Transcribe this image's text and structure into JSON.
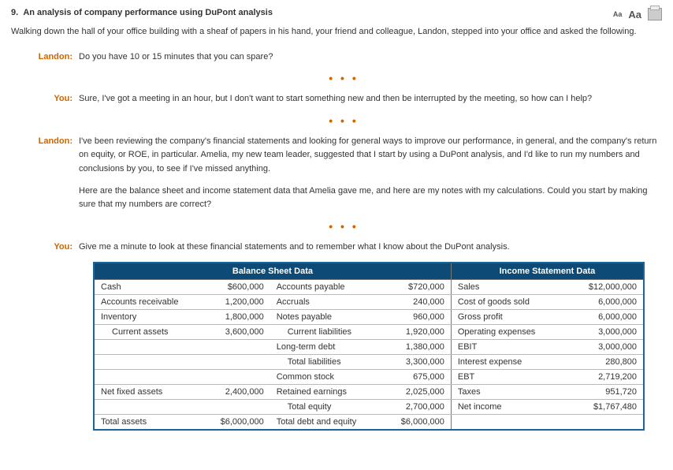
{
  "question": {
    "number": "9.",
    "title": "An analysis of company performance using DuPont analysis"
  },
  "tools": {
    "aa_small": "Aa",
    "aa_big": "Aa"
  },
  "intro": "Walking down the hall of your office building with a sheaf of papers in his hand, your friend and colleague, Landon, stepped into your office and asked the following.",
  "speakers": {
    "landon": "Landon:",
    "you": "You:"
  },
  "dlg": {
    "l1": "Do you have 10 or 15 minutes that you can spare?",
    "y1": "Sure, I've got a meeting in an hour, but I don't want to start something new and then be interrupted by the meeting, so how can I help?",
    "l2a": "I've been reviewing the company's financial statements and looking for general ways to improve our performance, in general, and the company's return on equity, or ROE, in particular. Amelia, my new team leader, suggested that I start by using a DuPont analysis, and I'd like to run my numbers and conclusions by you, to see if I've missed anything.",
    "l2b": "Here are the balance sheet and income statement data that Amelia gave me, and here are my notes with my calculations. Could you start by making sure that my numbers are correct?",
    "y2": "Give me a minute to look at these financial statements and to remember what I know about the DuPont analysis."
  },
  "dots": "• • •",
  "table": {
    "headers": {
      "bs": "Balance Sheet Data",
      "is": "Income Statement Data"
    },
    "rows": [
      {
        "a_lbl": "Cash",
        "a_val": "$600,000",
        "l_lbl": "Accounts payable",
        "l_val": "$720,000",
        "i_lbl": "Sales",
        "i_val": "$12,000,000",
        "indent_a": false,
        "indent_l": false
      },
      {
        "a_lbl": "Accounts receivable",
        "a_val": "1,200,000",
        "l_lbl": "Accruals",
        "l_val": "240,000",
        "i_lbl": "Cost of goods sold",
        "i_val": "6,000,000",
        "indent_a": false,
        "indent_l": false
      },
      {
        "a_lbl": "Inventory",
        "a_val": "1,800,000",
        "l_lbl": "Notes payable",
        "l_val": "960,000",
        "i_lbl": "Gross profit",
        "i_val": "6,000,000",
        "indent_a": false,
        "indent_l": false
      },
      {
        "a_lbl": "Current assets",
        "a_val": "3,600,000",
        "l_lbl": "Current liabilities",
        "l_val": "1,920,000",
        "i_lbl": "Operating expenses",
        "i_val": "3,000,000",
        "indent_a": true,
        "indent_l": true
      },
      {
        "a_lbl": "",
        "a_val": "",
        "l_lbl": "Long-term debt",
        "l_val": "1,380,000",
        "i_lbl": "EBIT",
        "i_val": "3,000,000",
        "indent_a": false,
        "indent_l": false
      },
      {
        "a_lbl": "",
        "a_val": "",
        "l_lbl": "Total liabilities",
        "l_val": "3,300,000",
        "i_lbl": "Interest expense",
        "i_val": "280,800",
        "indent_a": false,
        "indent_l": true
      },
      {
        "a_lbl": "",
        "a_val": "",
        "l_lbl": "Common stock",
        "l_val": "675,000",
        "i_lbl": "EBT",
        "i_val": "2,719,200",
        "indent_a": false,
        "indent_l": false
      },
      {
        "a_lbl": "Net fixed assets",
        "a_val": "2,400,000",
        "l_lbl": "Retained earnings",
        "l_val": "2,025,000",
        "i_lbl": "Taxes",
        "i_val": "951,720",
        "indent_a": false,
        "indent_l": false
      },
      {
        "a_lbl": "",
        "a_val": "",
        "l_lbl": "Total equity",
        "l_val": "2,700,000",
        "i_lbl": "Net income",
        "i_val": "$1,767,480",
        "indent_a": false,
        "indent_l": true
      },
      {
        "a_lbl": "Total assets",
        "a_val": "$6,000,000",
        "l_lbl": "Total debt and equity",
        "l_val": "$6,000,000",
        "i_lbl": "",
        "i_val": "",
        "indent_a": false,
        "indent_l": false
      }
    ]
  },
  "colors": {
    "header_bg": "#0d4a75",
    "border": "#1b6699",
    "speaker": "#cc6600"
  }
}
